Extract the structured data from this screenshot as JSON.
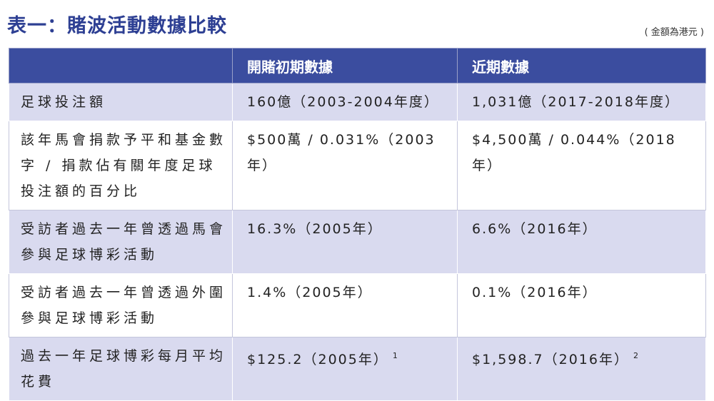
{
  "header": {
    "title": "表一：賭波活動數據比較",
    "note": "( 金額為港元 )"
  },
  "table": {
    "columns": [
      "開賭初期數據",
      "近期數據"
    ],
    "rows": [
      [
        "足球投注額",
        {
          "text": "160億（2003-2004年度）"
        },
        {
          "text": "1,031億（2017-2018年度）"
        }
      ],
      [
        "該年馬會捐款予平和基金數字 / 捐款佔有關年度足球投注額的百分比",
        {
          "text": "$500萬 / 0.031%（2003年）"
        },
        {
          "text": "$4,500萬 / 0.044%（2018年）"
        }
      ],
      [
        "受訪者過去一年曾透過馬會參與足球博彩活動",
        {
          "text": "16.3%（2005年）"
        },
        {
          "text": "6.6%（2016年）"
        }
      ],
      [
        "受訪者過去一年曾透過外圍參與足球博彩活動",
        {
          "text": "1.4%（2005年）"
        },
        {
          "text": "0.1%（2016年）"
        }
      ],
      [
        "過去一年足球博彩每月平均花費",
        {
          "text": "$125.2（2005年）",
          "sup": "1"
        },
        {
          "text": "$1,598.7（2016年）",
          "sup": "2"
        }
      ]
    ]
  }
}
